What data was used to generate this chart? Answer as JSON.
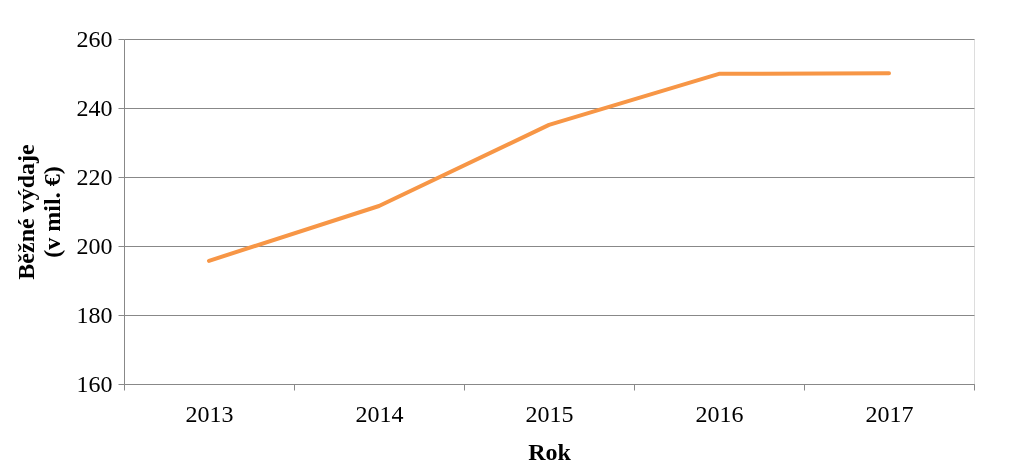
{
  "chart_data": {
    "type": "line",
    "categories": [
      "2013",
      "2014",
      "2015",
      "2016",
      "2017"
    ],
    "series": [
      {
        "color": "#f79646",
        "values": [
          195.7,
          211.6,
          235.1,
          249.9,
          250.1
        ]
      }
    ],
    "xlabel": "Rok",
    "ylabel": "Běžné výdaje\n(v mil. €)",
    "ylim": [
      160,
      260
    ],
    "yticks": [
      160,
      180,
      200,
      220,
      240,
      260
    ],
    "grid": "y",
    "marker": "none",
    "line_style": "solid"
  }
}
